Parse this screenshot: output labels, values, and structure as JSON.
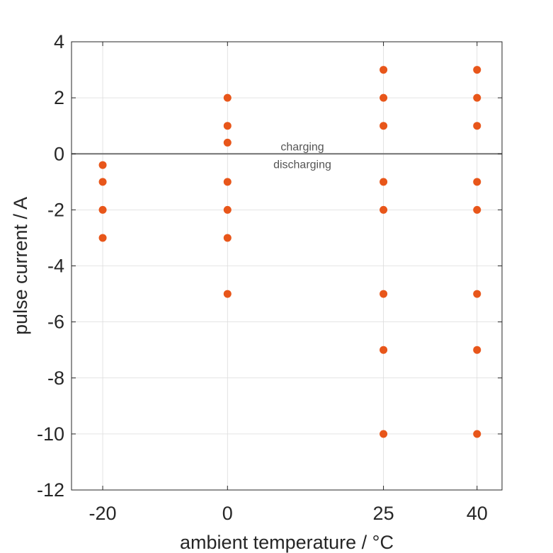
{
  "chart_data": {
    "type": "scatter",
    "xlabel": "ambient temperature / °C",
    "ylabel": "pulse current / A",
    "x_ticks": [
      -20,
      0,
      25,
      40
    ],
    "y_ticks": [
      -12,
      -10,
      -8,
      -6,
      -4,
      -2,
      0,
      2,
      4
    ],
    "xlim": [
      -25,
      44
    ],
    "ylim": [
      -12,
      4
    ],
    "grid": true,
    "point_color": "#e8561a",
    "reference_line": {
      "y": 0,
      "color": "#707070"
    },
    "annotations": [
      "charging",
      "discharging"
    ],
    "series": [
      {
        "points": [
          {
            "x": -20,
            "y": -0.4
          },
          {
            "x": -20,
            "y": -1
          },
          {
            "x": -20,
            "y": -2
          },
          {
            "x": -20,
            "y": -3
          },
          {
            "x": 0,
            "y": 2
          },
          {
            "x": 0,
            "y": 1
          },
          {
            "x": 0,
            "y": 0.4
          },
          {
            "x": 0,
            "y": -1
          },
          {
            "x": 0,
            "y": -2
          },
          {
            "x": 0,
            "y": -3
          },
          {
            "x": 0,
            "y": -5
          },
          {
            "x": 25,
            "y": 3
          },
          {
            "x": 25,
            "y": 2
          },
          {
            "x": 25,
            "y": 1
          },
          {
            "x": 25,
            "y": -1
          },
          {
            "x": 25,
            "y": -2
          },
          {
            "x": 25,
            "y": -5
          },
          {
            "x": 25,
            "y": -7
          },
          {
            "x": 25,
            "y": -10
          },
          {
            "x": 40,
            "y": 3
          },
          {
            "x": 40,
            "y": 2
          },
          {
            "x": 40,
            "y": 1
          },
          {
            "x": 40,
            "y": -1
          },
          {
            "x": 40,
            "y": -2
          },
          {
            "x": 40,
            "y": -5
          },
          {
            "x": 40,
            "y": -7
          },
          {
            "x": 40,
            "y": -10
          }
        ]
      }
    ]
  }
}
